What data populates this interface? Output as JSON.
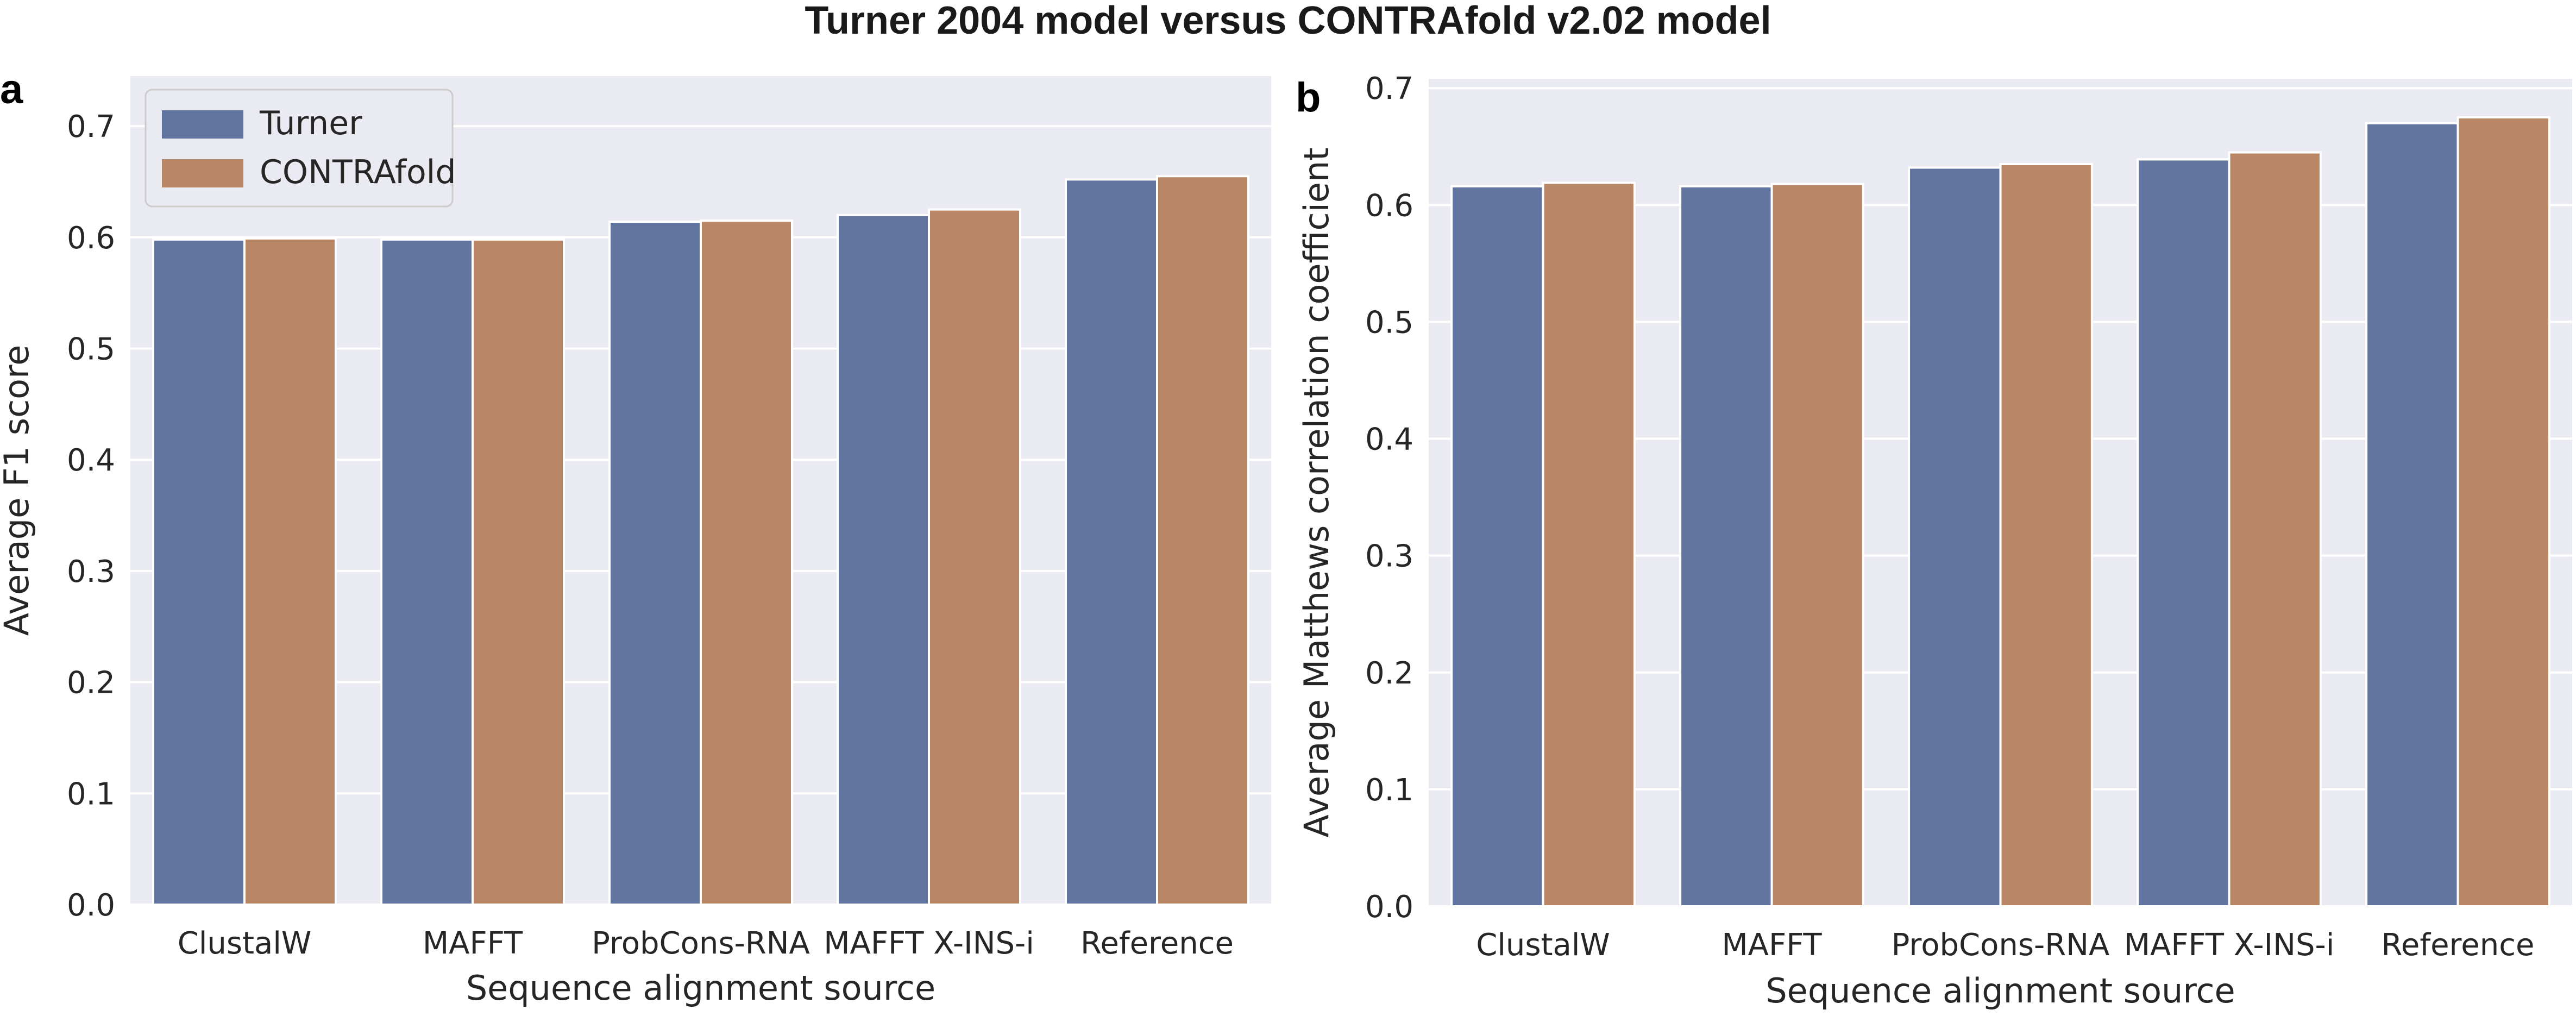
{
  "figure": {
    "title": "Turner 2004 model versus CONTRAfold v2.02 model"
  },
  "colors": {
    "turner": "#6174a0",
    "contrafold": "#b98765",
    "plot_background": "#eaeaf2",
    "grid": "#ffffff",
    "text": "#262626"
  },
  "chart_data": [
    {
      "type": "bar",
      "panel": "a",
      "title": "",
      "xlabel": "Sequence alignment source",
      "ylabel": "Average F1 score",
      "categories": [
        "ClustalW",
        "MAFFT",
        "ProbCons-RNA",
        "MAFFT X-INS-i",
        "Reference"
      ],
      "series": [
        {
          "name": "Turner",
          "values": [
            0.598,
            0.598,
            0.614,
            0.62,
            0.652
          ]
        },
        {
          "name": "CONTRAfold",
          "values": [
            0.599,
            0.598,
            0.615,
            0.625,
            0.655
          ]
        }
      ],
      "ylim": [
        0,
        0.745
      ],
      "yticks": [
        0.0,
        0.1,
        0.2,
        0.3,
        0.4,
        0.5,
        0.6,
        0.7
      ],
      "ytick_labels": [
        "0.0",
        "0.1",
        "0.2",
        "0.3",
        "0.4",
        "0.5",
        "0.6",
        "0.7"
      ],
      "grid": true,
      "legend": "top-left"
    },
    {
      "type": "bar",
      "panel": "b",
      "title": "",
      "xlabel": "Sequence alignment source",
      "ylabel": "Average Matthews correlation coefficient",
      "categories": [
        "ClustalW",
        "MAFFT",
        "ProbCons-RNA",
        "MAFFT X-INS-i",
        "Reference"
      ],
      "series": [
        {
          "name": "Turner",
          "values": [
            0.616,
            0.616,
            0.632,
            0.639,
            0.67
          ]
        },
        {
          "name": "CONTRAfold",
          "values": [
            0.619,
            0.618,
            0.635,
            0.645,
            0.675
          ]
        }
      ],
      "ylim": [
        0,
        0.708
      ],
      "yticks": [
        0.0,
        0.1,
        0.2,
        0.3,
        0.4,
        0.5,
        0.6,
        0.7
      ],
      "ytick_labels": [
        "0.0",
        "0.1",
        "0.2",
        "0.3",
        "0.4",
        "0.5",
        "0.6",
        "0.7"
      ],
      "grid": true,
      "legend": "none"
    }
  ]
}
